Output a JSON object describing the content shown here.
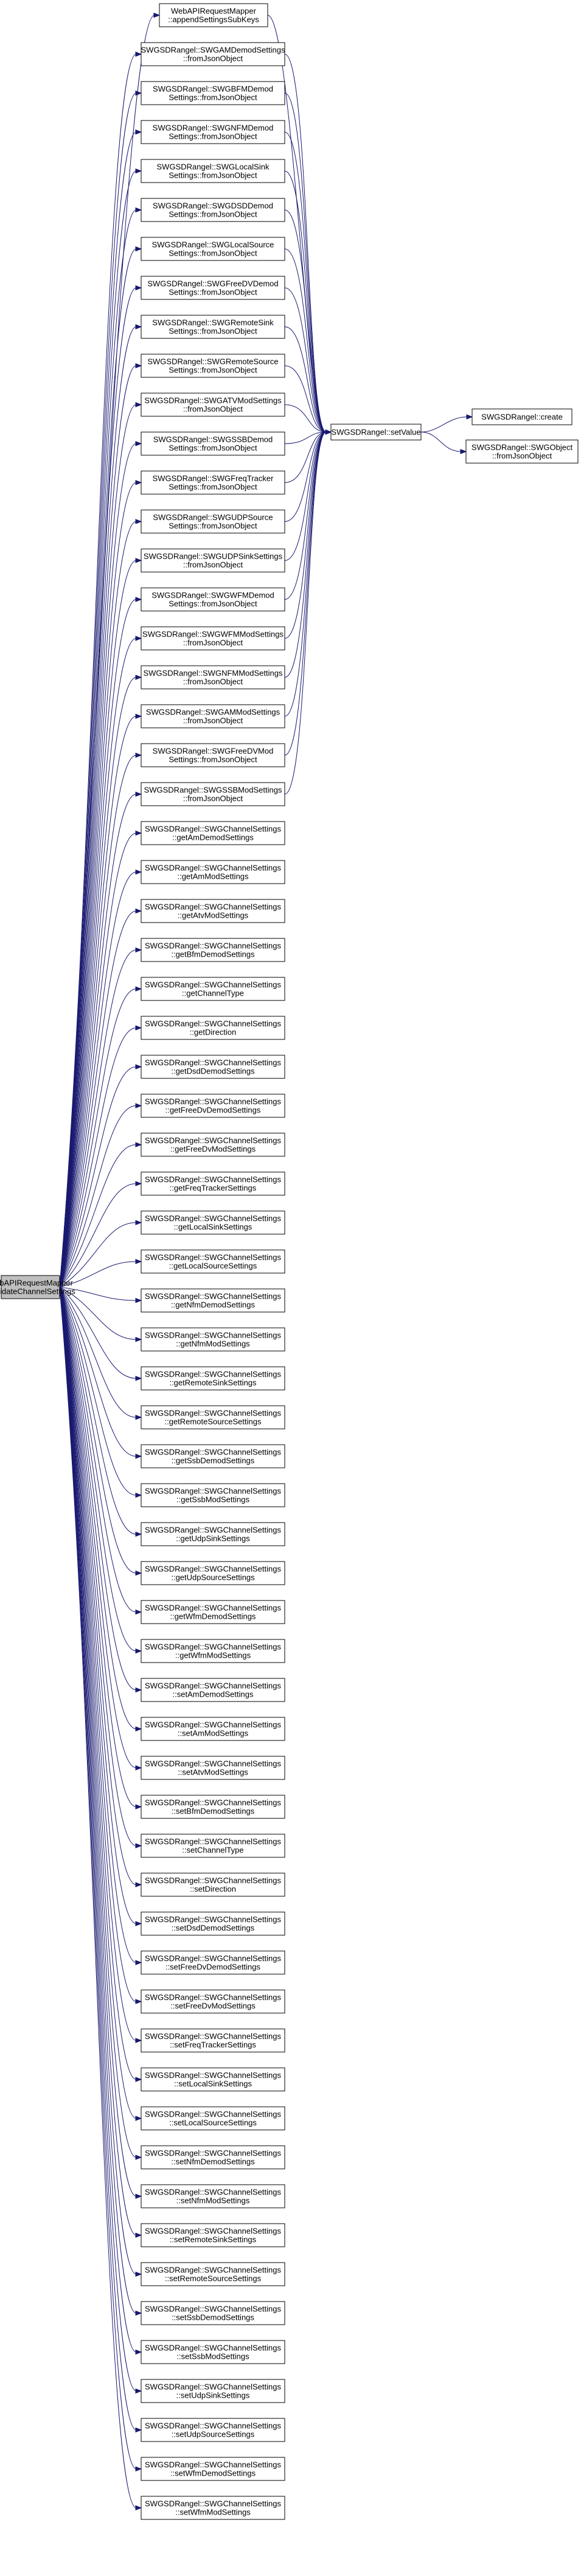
{
  "diagram": {
    "type": "call-graph",
    "edge_color": "#191970",
    "root_fill": "#bfbfbf",
    "root": {
      "lines": [
        "WebAPIRequestMapper",
        "::validateChannelSettings"
      ]
    },
    "setvalue": {
      "lines": [
        "SWGSDRangel::setValue"
      ]
    },
    "create": {
      "lines": [
        "SWGSDRangel::create"
      ]
    },
    "swgobject": {
      "lines": [
        "SWGSDRangel::SWGObject",
        "::fromJsonObject"
      ]
    },
    "top_nodes": [
      {
        "lines": [
          "WebAPIRequestMapper",
          "::appendSettingsSubKeys"
        ],
        "calls_setvalue": true
      },
      {
        "lines": [
          "SWGSDRangel::SWGAMDemodSettings",
          "::fromJsonObject"
        ],
        "calls_setvalue": true
      },
      {
        "lines": [
          "SWGSDRangel::SWGBFMDemod",
          "Settings::fromJsonObject"
        ],
        "calls_setvalue": true
      },
      {
        "lines": [
          "SWGSDRangel::SWGNFMDemod",
          "Settings::fromJsonObject"
        ],
        "calls_setvalue": true
      },
      {
        "lines": [
          "SWGSDRangel::SWGLocalSink",
          "Settings::fromJsonObject"
        ],
        "calls_setvalue": true
      },
      {
        "lines": [
          "SWGSDRangel::SWGDSDDemod",
          "Settings::fromJsonObject"
        ],
        "calls_setvalue": true
      },
      {
        "lines": [
          "SWGSDRangel::SWGLocalSource",
          "Settings::fromJsonObject"
        ],
        "calls_setvalue": true
      },
      {
        "lines": [
          "SWGSDRangel::SWGFreeDVDemod",
          "Settings::fromJsonObject"
        ],
        "calls_setvalue": true
      },
      {
        "lines": [
          "SWGSDRangel::SWGRemoteSink",
          "Settings::fromJsonObject"
        ],
        "calls_setvalue": true
      },
      {
        "lines": [
          "SWGSDRangel::SWGRemoteSource",
          "Settings::fromJsonObject"
        ],
        "calls_setvalue": true
      },
      {
        "lines": [
          "SWGSDRangel::SWGATVModSettings",
          "::fromJsonObject"
        ],
        "calls_setvalue": true
      },
      {
        "lines": [
          "SWGSDRangel::SWGSSBDemod",
          "Settings::fromJsonObject"
        ],
        "calls_setvalue": true
      },
      {
        "lines": [
          "SWGSDRangel::SWGFreqTracker",
          "Settings::fromJsonObject"
        ],
        "calls_setvalue": true
      },
      {
        "lines": [
          "SWGSDRangel::SWGUDPSource",
          "Settings::fromJsonObject"
        ],
        "calls_setvalue": true
      },
      {
        "lines": [
          "SWGSDRangel::SWGUDPSinkSettings",
          "::fromJsonObject"
        ],
        "calls_setvalue": true
      },
      {
        "lines": [
          "SWGSDRangel::SWGWFMDemod",
          "Settings::fromJsonObject"
        ],
        "calls_setvalue": true
      },
      {
        "lines": [
          "SWGSDRangel::SWGWFMModSettings",
          "::fromJsonObject"
        ],
        "calls_setvalue": true
      },
      {
        "lines": [
          "SWGSDRangel::SWGNFMModSettings",
          "::fromJsonObject"
        ],
        "calls_setvalue": true
      },
      {
        "lines": [
          "SWGSDRangel::SWGAMModSettings",
          "::fromJsonObject"
        ],
        "calls_setvalue": true
      },
      {
        "lines": [
          "SWGSDRangel::SWGFreeDVMod",
          "Settings::fromJsonObject"
        ],
        "calls_setvalue": true
      },
      {
        "lines": [
          "SWGSDRangel::SWGSSBModSettings",
          "::fromJsonObject"
        ],
        "calls_setvalue": true
      },
      {
        "lines": [
          "SWGSDRangel::SWGChannelSettings",
          "::getAmDemodSettings"
        ],
        "calls_setvalue": false
      },
      {
        "lines": [
          "SWGSDRangel::SWGChannelSettings",
          "::getAmModSettings"
        ],
        "calls_setvalue": false
      },
      {
        "lines": [
          "SWGSDRangel::SWGChannelSettings",
          "::getAtvModSettings"
        ],
        "calls_setvalue": false
      },
      {
        "lines": [
          "SWGSDRangel::SWGChannelSettings",
          "::getBfmDemodSettings"
        ],
        "calls_setvalue": false
      },
      {
        "lines": [
          "SWGSDRangel::SWGChannelSettings",
          "::getChannelType"
        ],
        "calls_setvalue": false
      },
      {
        "lines": [
          "SWGSDRangel::SWGChannelSettings",
          "::getDirection"
        ],
        "calls_setvalue": false
      },
      {
        "lines": [
          "SWGSDRangel::SWGChannelSettings",
          "::getDsdDemodSettings"
        ],
        "calls_setvalue": false
      },
      {
        "lines": [
          "SWGSDRangel::SWGChannelSettings",
          "::getFreeDvDemodSettings"
        ],
        "calls_setvalue": false
      },
      {
        "lines": [
          "SWGSDRangel::SWGChannelSettings",
          "::getFreeDvModSettings"
        ],
        "calls_setvalue": false
      },
      {
        "lines": [
          "SWGSDRangel::SWGChannelSettings",
          "::getFreqTrackerSettings"
        ],
        "calls_setvalue": false
      },
      {
        "lines": [
          "SWGSDRangel::SWGChannelSettings",
          "::getLocalSinkSettings"
        ],
        "calls_setvalue": false
      },
      {
        "lines": [
          "SWGSDRangel::SWGChannelSettings",
          "::getLocalSourceSettings"
        ],
        "calls_setvalue": false
      },
      {
        "lines": [
          "SWGSDRangel::SWGChannelSettings",
          "::getNfmDemodSettings"
        ],
        "calls_setvalue": false
      },
      {
        "lines": [
          "SWGSDRangel::SWGChannelSettings",
          "::getNfmModSettings"
        ],
        "calls_setvalue": false
      },
      {
        "lines": [
          "SWGSDRangel::SWGChannelSettings",
          "::getRemoteSinkSettings"
        ],
        "calls_setvalue": false
      },
      {
        "lines": [
          "SWGSDRangel::SWGChannelSettings",
          "::getRemoteSourceSettings"
        ],
        "calls_setvalue": false
      },
      {
        "lines": [
          "SWGSDRangel::SWGChannelSettings",
          "::getSsbDemodSettings"
        ],
        "calls_setvalue": false
      },
      {
        "lines": [
          "SWGSDRangel::SWGChannelSettings",
          "::getSsbModSettings"
        ],
        "calls_setvalue": false
      },
      {
        "lines": [
          "SWGSDRangel::SWGChannelSettings",
          "::getUdpSinkSettings"
        ],
        "calls_setvalue": false
      },
      {
        "lines": [
          "SWGSDRangel::SWGChannelSettings",
          "::getUdpSourceSettings"
        ],
        "calls_setvalue": false
      },
      {
        "lines": [
          "SWGSDRangel::SWGChannelSettings",
          "::getWfmDemodSettings"
        ],
        "calls_setvalue": false
      },
      {
        "lines": [
          "SWGSDRangel::SWGChannelSettings",
          "::getWfmModSettings"
        ],
        "calls_setvalue": false
      },
      {
        "lines": [
          "SWGSDRangel::SWGChannelSettings",
          "::setAmDemodSettings"
        ],
        "calls_setvalue": false
      },
      {
        "lines": [
          "SWGSDRangel::SWGChannelSettings",
          "::setAmModSettings"
        ],
        "calls_setvalue": false
      },
      {
        "lines": [
          "SWGSDRangel::SWGChannelSettings",
          "::setAtvModSettings"
        ],
        "calls_setvalue": false
      },
      {
        "lines": [
          "SWGSDRangel::SWGChannelSettings",
          "::setBfmDemodSettings"
        ],
        "calls_setvalue": false
      },
      {
        "lines": [
          "SWGSDRangel::SWGChannelSettings",
          "::setChannelType"
        ],
        "calls_setvalue": false
      },
      {
        "lines": [
          "SWGSDRangel::SWGChannelSettings",
          "::setDirection"
        ],
        "calls_setvalue": false
      },
      {
        "lines": [
          "SWGSDRangel::SWGChannelSettings",
          "::setDsdDemodSettings"
        ],
        "calls_setvalue": false
      },
      {
        "lines": [
          "SWGSDRangel::SWGChannelSettings",
          "::setFreeDvDemodSettings"
        ],
        "calls_setvalue": false
      },
      {
        "lines": [
          "SWGSDRangel::SWGChannelSettings",
          "::setFreeDvModSettings"
        ],
        "calls_setvalue": false
      },
      {
        "lines": [
          "SWGSDRangel::SWGChannelSettings",
          "::setFreqTrackerSettings"
        ],
        "calls_setvalue": false
      },
      {
        "lines": [
          "SWGSDRangel::SWGChannelSettings",
          "::setLocalSinkSettings"
        ],
        "calls_setvalue": false
      },
      {
        "lines": [
          "SWGSDRangel::SWGChannelSettings",
          "::setLocalSourceSettings"
        ],
        "calls_setvalue": false
      },
      {
        "lines": [
          "SWGSDRangel::SWGChannelSettings",
          "::setNfmDemodSettings"
        ],
        "calls_setvalue": false
      },
      {
        "lines": [
          "SWGSDRangel::SWGChannelSettings",
          "::setNfmModSettings"
        ],
        "calls_setvalue": false
      },
      {
        "lines": [
          "SWGSDRangel::SWGChannelSettings",
          "::setRemoteSinkSettings"
        ],
        "calls_setvalue": false
      },
      {
        "lines": [
          "SWGSDRangel::SWGChannelSettings",
          "::setRemoteSourceSettings"
        ],
        "calls_setvalue": false
      },
      {
        "lines": [
          "SWGSDRangel::SWGChannelSettings",
          "::setSsbDemodSettings"
        ],
        "calls_setvalue": false
      },
      {
        "lines": [
          "SWGSDRangel::SWGChannelSettings",
          "::setSsbModSettings"
        ],
        "calls_setvalue": false
      },
      {
        "lines": [
          "SWGSDRangel::SWGChannelSettings",
          "::setUdpSinkSettings"
        ],
        "calls_setvalue": false
      },
      {
        "lines": [
          "SWGSDRangel::SWGChannelSettings",
          "::setUdpSourceSettings"
        ],
        "calls_setvalue": false
      },
      {
        "lines": [
          "SWGSDRangel::SWGChannelSettings",
          "::setWfmDemodSettings"
        ],
        "calls_setvalue": false
      },
      {
        "lines": [
          "SWGSDRangel::SWGChannelSettings",
          "::setWfmModSettings"
        ],
        "calls_setvalue": false
      }
    ]
  }
}
